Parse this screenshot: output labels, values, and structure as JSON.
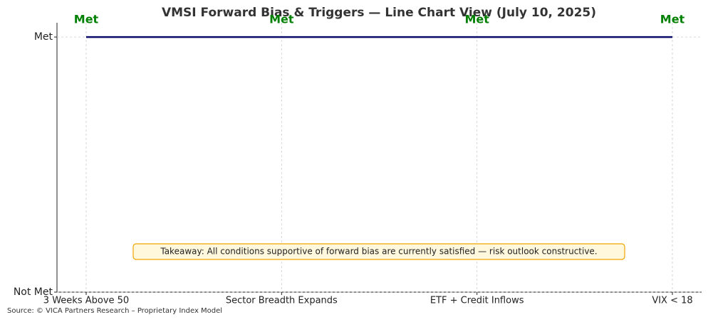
{
  "chart_data": {
    "type": "line",
    "title": "VMSI Forward Bias & Triggers — Line Chart View (July 10, 2025)",
    "categories": [
      "3 Weeks Above 50",
      "Sector Breadth Expands",
      "ETF + Credit Inflows",
      "VIX < 18"
    ],
    "values": [
      1,
      1,
      1,
      1
    ],
    "value_labels": [
      "Met",
      "Met",
      "Met",
      "Met"
    ],
    "color": "#0b0b6b",
    "label_color": "#008000",
    "ylim": [
      0,
      1.056
    ],
    "yticks": [
      {
        "value": 0,
        "label": "Not Met"
      },
      {
        "value": 1,
        "label": "Met"
      }
    ],
    "grid": true,
    "annotation": "Takeaway: All conditions supportive of forward bias are currently satisfied — risk outlook constructive.",
    "source": "Source: © VICA Partners Research – Proprietary Index Model"
  }
}
